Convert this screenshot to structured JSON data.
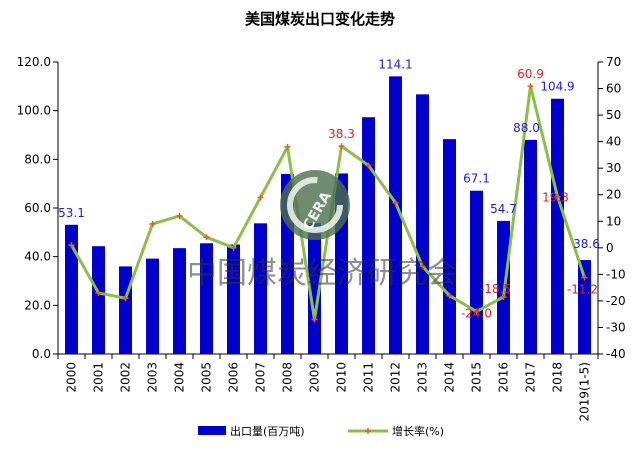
{
  "chart_data": {
    "type": "bar",
    "title": "美国煤炭出口变化走势",
    "categories": [
      "2000",
      "2001",
      "2002",
      "2003",
      "2004",
      "2005",
      "2006",
      "2007",
      "2008",
      "2009",
      "2010",
      "2011",
      "2012",
      "2013",
      "2014",
      "2015",
      "2016",
      "2017",
      "2018",
      "2019(1-5)"
    ],
    "series": [
      {
        "name": "出口量(百万吨)",
        "type": "bar",
        "axis": "left",
        "color": "#0000cc",
        "values": [
          53.1,
          44.3,
          36.0,
          39.2,
          43.5,
          45.5,
          45.0,
          53.7,
          74.0,
          53.8,
          74.2,
          97.3,
          114.1,
          106.7,
          88.3,
          67.1,
          54.7,
          88.0,
          104.9,
          38.6
        ]
      },
      {
        "name": "增长率(%)",
        "type": "line",
        "axis": "right",
        "color": "#8cbf4a",
        "values": [
          1,
          -17,
          -19,
          9,
          12,
          4,
          0,
          19,
          38,
          -27,
          38.3,
          31,
          17,
          -7,
          -18,
          -24.0,
          -18.5,
          60.9,
          19.3,
          -11.2
        ]
      }
    ],
    "bar_labels": [
      {
        "index": 0,
        "text": "53.1"
      },
      {
        "index": 12,
        "text": "114.1"
      },
      {
        "index": 15,
        "text": "67.1"
      },
      {
        "index": 16,
        "text": "54.7"
      },
      {
        "index": 17,
        "text": "88.0"
      },
      {
        "index": 18,
        "text": "104.9"
      },
      {
        "index": 19,
        "text": "38.6"
      }
    ],
    "rate_labels": [
      {
        "index": 10,
        "text": "38.3"
      },
      {
        "index": 15,
        "text": "-24.0"
      },
      {
        "index": 16,
        "text": "-18.5"
      },
      {
        "index": 17,
        "text": "60.9"
      },
      {
        "index": 18,
        "text": "19.3"
      },
      {
        "index": 19,
        "text": "-11.2"
      }
    ],
    "left_axis": {
      "min": 0,
      "max": 120,
      "step": 20,
      "tick_labels": [
        "0.0",
        "20.0",
        "40.0",
        "60.0",
        "80.0",
        "100.0",
        "120.0"
      ]
    },
    "right_axis": {
      "min": -40,
      "max": 70,
      "step": 10,
      "tick_labels": [
        "-40",
        "-30",
        "-20",
        "-10",
        "0",
        "10",
        "20",
        "30",
        "40",
        "50",
        "60",
        "70"
      ]
    },
    "legend_position": "bottom",
    "grid": false,
    "watermark": {
      "text": "中国煤炭经济研究会",
      "logo_text": "CERA"
    }
  }
}
